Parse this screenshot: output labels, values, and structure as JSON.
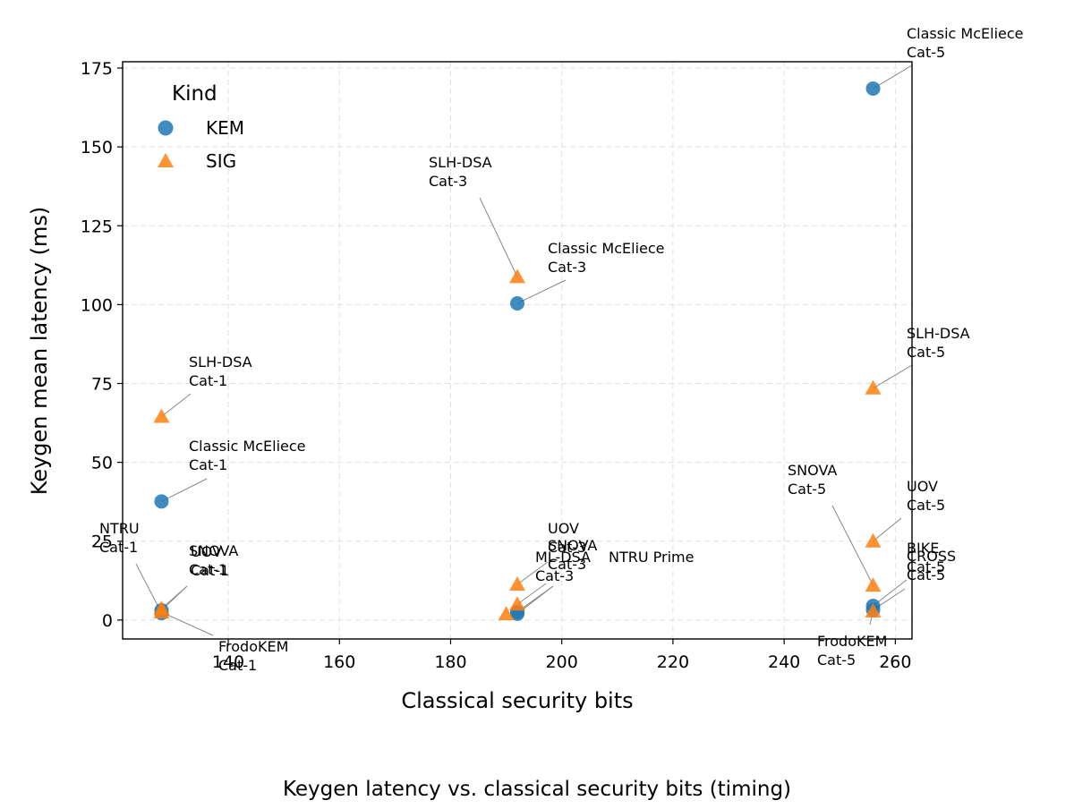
{
  "chart_data": {
    "type": "scatter",
    "title": "",
    "caption": "Keygen latency vs. classical security bits (timing)",
    "xlabel": "Classical security bits",
    "ylabel": "Keygen mean latency (ms)",
    "xlim": [
      121,
      263
    ],
    "ylim": [
      -6,
      177
    ],
    "xticks": [
      140,
      160,
      180,
      200,
      220,
      240,
      260
    ],
    "yticks": [
      0,
      25,
      50,
      75,
      100,
      125,
      150,
      175
    ],
    "grid": true,
    "legend": {
      "title": "Kind",
      "position": "top-left",
      "entries": [
        {
          "label": "KEM",
          "marker": "circle",
          "color": "#1f77b4"
        },
        {
          "label": "SIG",
          "marker": "triangle",
          "color": "#ff7f0e"
        }
      ]
    },
    "series": [
      {
        "name": "KEM",
        "marker": "circle",
        "color": "#1f77b4",
        "points": [
          {
            "x": 128,
            "y": 37.6
          },
          {
            "x": 128,
            "y": 3.1
          },
          {
            "x": 128,
            "y": 2.2
          },
          {
            "x": 192,
            "y": 100.4
          },
          {
            "x": 192,
            "y": 2.6
          },
          {
            "x": 192,
            "y": 2.0
          },
          {
            "x": 256,
            "y": 168.5
          },
          {
            "x": 256,
            "y": 4.5
          },
          {
            "x": 256,
            "y": 3.2
          }
        ]
      },
      {
        "name": "SIG",
        "marker": "triangle",
        "color": "#ff7f0e",
        "points": [
          {
            "x": 128,
            "y": 64.5
          },
          {
            "x": 128,
            "y": 3.6
          },
          {
            "x": 128,
            "y": 2.5
          },
          {
            "x": 192,
            "y": 108.8
          },
          {
            "x": 192,
            "y": 11.3
          },
          {
            "x": 192,
            "y": 5.0
          },
          {
            "x": 190,
            "y": 1.9
          },
          {
            "x": 256,
            "y": 73.5
          },
          {
            "x": 256,
            "y": 25.0
          },
          {
            "x": 256,
            "y": 11.0
          },
          {
            "x": 256,
            "y": 2.8
          }
        ]
      }
    ],
    "annotations": [
      {
        "lines": [
          "Classic McEliece",
          "Cat-5"
        ],
        "x": 256,
        "y": 168.5
      },
      {
        "lines": [
          "SLH-DSA",
          "Cat-3"
        ],
        "x": 192,
        "y": 108.8
      },
      {
        "lines": [
          "Classic McEliece",
          "Cat-3"
        ],
        "x": 192,
        "y": 100.4
      },
      {
        "lines": [
          "SLH-DSA",
          "Cat-5"
        ],
        "x": 256,
        "y": 73.5
      },
      {
        "lines": [
          "SLH-DSA",
          "Cat-1"
        ],
        "x": 128,
        "y": 64.5
      },
      {
        "lines": [
          "Classic McEliece",
          "Cat-1"
        ],
        "x": 128,
        "y": 37.6
      },
      {
        "lines": [
          "SNOVA",
          "Cat-5"
        ],
        "x": 256,
        "y": 11.0
      },
      {
        "lines": [
          "UOV",
          "Cat-5"
        ],
        "x": 256,
        "y": 25.0
      },
      {
        "lines": [
          "NTRU",
          "Cat-1"
        ],
        "x": 128,
        "y": 2.2
      },
      {
        "lines": [
          "SNOVA",
          "Cat-1"
        ],
        "x": 128,
        "y": 3.1
      },
      {
        "lines": [
          "UOV",
          "Cat-1"
        ],
        "x": 128,
        "y": 3.6
      },
      {
        "lines": [
          "FrodoKEM",
          "Cat-1"
        ],
        "x": 128,
        "y": 2.5
      },
      {
        "lines": [
          "UOV",
          "Cat-3"
        ],
        "x": 192,
        "y": 11.3
      },
      {
        "lines": [
          "SNOVA",
          "Cat-3"
        ],
        "x": 192,
        "y": 5.0
      },
      {
        "lines": [
          "ML-DSA",
          "Cat-3"
        ],
        "x": 192,
        "y": 2.6
      },
      {
        "lines": [
          "NTRU Prime"
        ],
        "x": 192,
        "y": 2.0
      },
      {
        "lines": [
          "BIKE",
          "Cat-5"
        ],
        "x": 256,
        "y": 4.5
      },
      {
        "lines": [
          "CROSS",
          "Cat-5"
        ],
        "x": 256,
        "y": 3.2
      },
      {
        "lines": [
          "FrodoKEM",
          "Cat-5"
        ],
        "x": 256,
        "y": 2.8
      }
    ]
  }
}
